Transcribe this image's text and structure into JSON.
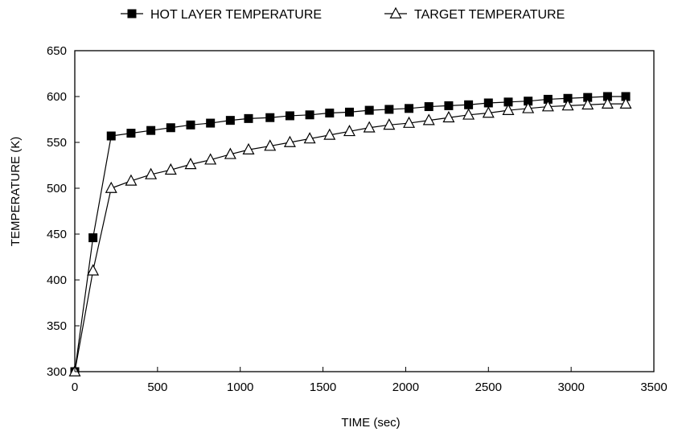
{
  "chart_data": {
    "type": "line",
    "xlabel": "TIME (sec)",
    "ylabel": "TEMPERATURE (K)",
    "xlim": [
      0,
      3500
    ],
    "ylim": [
      300,
      650
    ],
    "x_ticks": [
      0,
      500,
      1000,
      1500,
      2000,
      2500,
      3000,
      3500
    ],
    "y_ticks": [
      300,
      350,
      400,
      450,
      500,
      550,
      600,
      650
    ],
    "grid": false,
    "legend_position": "top",
    "series": [
      {
        "name": "HOT LAYER TEMPERATURE",
        "marker": "filled-square",
        "color": "#000000",
        "x": [
          0,
          110,
          220,
          340,
          460,
          580,
          700,
          820,
          940,
          1050,
          1180,
          1300,
          1420,
          1540,
          1660,
          1780,
          1900,
          2020,
          2140,
          2260,
          2380,
          2500,
          2620,
          2740,
          2860,
          2980,
          3100,
          3220,
          3330
        ],
        "y": [
          300,
          446,
          557,
          560,
          563,
          566,
          569,
          571,
          574,
          576,
          577,
          579,
          580,
          582,
          583,
          585,
          586,
          587,
          589,
          590,
          591,
          593,
          594,
          595,
          597,
          598,
          599,
          600,
          600
        ]
      },
      {
        "name": "TARGET TEMPERATURE",
        "marker": "open-triangle",
        "color": "#000000",
        "x": [
          0,
          110,
          220,
          340,
          460,
          580,
          700,
          820,
          940,
          1050,
          1180,
          1300,
          1420,
          1540,
          1660,
          1780,
          1900,
          2020,
          2140,
          2260,
          2380,
          2500,
          2620,
          2740,
          2860,
          2980,
          3100,
          3220,
          3330
        ],
        "y": [
          300,
          410,
          500,
          508,
          515,
          520,
          526,
          531,
          537,
          542,
          546,
          550,
          554,
          558,
          562,
          566,
          569,
          571,
          574,
          577,
          580,
          582,
          585,
          587,
          589,
          590,
          591,
          592,
          592
        ]
      }
    ]
  }
}
